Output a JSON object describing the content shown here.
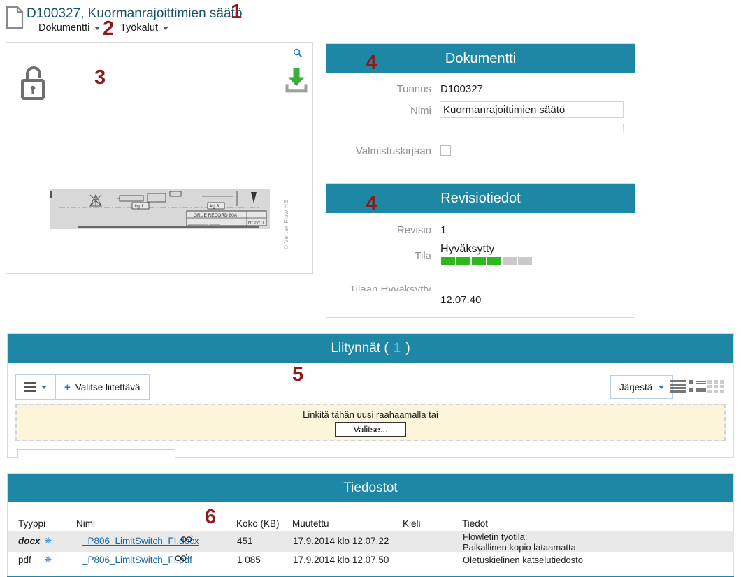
{
  "annotations": {
    "a1": "1",
    "a2": "2",
    "a3": "3",
    "a4": "4",
    "a5": "5",
    "a6": "6"
  },
  "header": {
    "title": "D100327, Kuormanrajoittimien säätö",
    "menus": [
      {
        "label": "Dokumentti"
      },
      {
        "label": "Työkalut"
      }
    ]
  },
  "preview": {
    "copyright": "© Vertex Flow HE",
    "drawing": {
      "label_kg1": "kg 1",
      "label_kg3": "kg 3",
      "title_block": "GRUE RECORD 80A",
      "number_block": "N° 27CT"
    }
  },
  "document_panel": {
    "title": "Dokumentti",
    "fields": {
      "tunnus": {
        "label": "Tunnus",
        "value": "D100327"
      },
      "nimi": {
        "label": "Nimi",
        "value": "Kuormanrajoittimien säätö"
      }
    },
    "checkbox_label": "Valmistuskirjaan"
  },
  "revision_panel": {
    "title": "Revisiotiedot",
    "revisio_label": "Revisio",
    "revisio_value": "1",
    "tila_label": "Tila",
    "tila_value": "Hyväksytty",
    "progress": {
      "filled": 4,
      "total": 6
    },
    "cut_label": "Tilaan Hyväksytty",
    "cut_value": "12.07.40"
  },
  "liitynnat": {
    "title_prefix": "Liitynnät (",
    "count": "1",
    "title_suffix": ")",
    "plus_glyph": "+",
    "add_button": "Valitse liitettävä",
    "sort_button": "Järjestä",
    "dropzone_text": "Linkitä tähän uusi raahaamalla tai",
    "dropzone_button": "Valitse..."
  },
  "tiedostot": {
    "title": "Tiedostot",
    "columns": [
      "Tyyppi",
      "Nimi",
      "Koko (KB)",
      "Muutettu",
      "Kieli",
      "Tiedot"
    ],
    "gear_glyph": "❋",
    "rows": [
      {
        "type": "docx",
        "name": "_P806_LimitSwitch_FI.docx",
        "size": "451",
        "modified": "17.9.2014 klo 12.07.22",
        "lang": "",
        "info": "Flowletin työtila:\nPaikallinen kopio lataamatta"
      },
      {
        "type": "pdf",
        "name": "_P806_LimitSwitch_FI.pdf",
        "size": "1 085",
        "modified": "17.9.2014 klo 12.07.50",
        "lang": "",
        "info": "Oletuskielinen katselutiedosto"
      }
    ]
  },
  "colors": {
    "teal": "#1e87a5",
    "progress_green": "#2eb81e",
    "annotation_red": "#8e1b1b",
    "link_blue": "#1266ad"
  }
}
